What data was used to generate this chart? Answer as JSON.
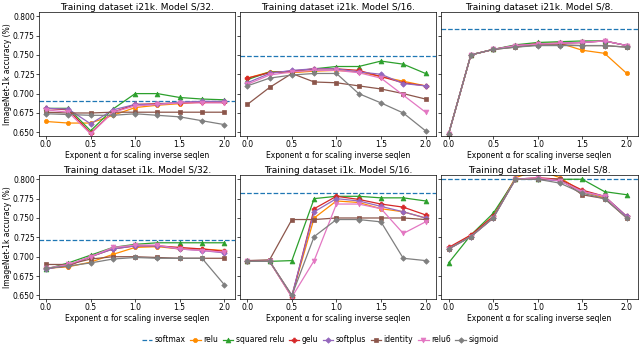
{
  "alpha_values": [
    0.0,
    0.25,
    0.5,
    0.75,
    1.0,
    1.25,
    1.5,
    1.75,
    2.0
  ],
  "titles": [
    "Training dataset i21k. Model S/32.",
    "Training dataset i21k. Model S/16.",
    "Training dataset i21k. Model S/8.",
    "Training dataset i1k. Model S/32.",
    "Training dataset i1k. Model S/16.",
    "Training dataset i1k. Model S/8."
  ],
  "softmax_lines": [
    0.6905,
    0.748,
    0.783,
    0.722,
    0.782,
    0.8
  ],
  "series": {
    "relu": {
      "color": "#ff8c00",
      "marker": "o",
      "markersize": 3.0,
      "data": [
        [
          0.664,
          0.662,
          0.662,
          0.672,
          0.682,
          0.685,
          0.687,
          0.689,
          0.69
        ],
        [
          0.72,
          0.728,
          0.727,
          0.729,
          0.73,
          0.728,
          0.722,
          0.716,
          0.71
        ],
        [
          0.648,
          0.75,
          0.757,
          0.762,
          0.765,
          0.765,
          0.756,
          0.752,
          0.726
        ],
        [
          0.685,
          0.687,
          0.693,
          0.703,
          0.712,
          0.713,
          0.71,
          0.71,
          0.708
        ],
        [
          0.694,
          0.694,
          0.65,
          0.75,
          0.772,
          0.77,
          0.762,
          0.758,
          0.75
        ],
        [
          0.71,
          0.728,
          0.752,
          0.802,
          0.812,
          0.802,
          0.784,
          0.776,
          0.75
        ]
      ]
    },
    "squared_relu": {
      "color": "#2ca02c",
      "marker": "^",
      "markersize": 3.5,
      "data": [
        [
          0.681,
          0.681,
          0.652,
          0.68,
          0.7,
          0.7,
          0.695,
          0.693,
          0.692
        ],
        [
          0.718,
          0.728,
          0.728,
          0.732,
          0.735,
          0.735,
          0.742,
          0.738,
          0.726
        ],
        [
          0.648,
          0.75,
          0.757,
          0.763,
          0.766,
          0.767,
          0.768,
          0.768,
          0.762
        ],
        [
          0.684,
          0.692,
          0.702,
          0.712,
          0.716,
          0.718,
          0.718,
          0.718,
          0.718
        ],
        [
          0.694,
          0.694,
          0.695,
          0.775,
          0.778,
          0.778,
          0.776,
          0.776,
          0.772
        ],
        [
          0.692,
          0.728,
          0.756,
          0.8,
          0.8,
          0.8,
          0.8,
          0.784,
          0.78
        ]
      ]
    },
    "gelu": {
      "color": "#d62728",
      "marker": "P",
      "markersize": 3.5,
      "data": [
        [
          0.681,
          0.679,
          0.649,
          0.676,
          0.686,
          0.687,
          0.688,
          0.689,
          0.689
        ],
        [
          0.72,
          0.727,
          0.729,
          0.732,
          0.732,
          0.73,
          0.722,
          0.714,
          0.71
        ],
        [
          0.648,
          0.75,
          0.757,
          0.762,
          0.764,
          0.765,
          0.766,
          0.768,
          0.762
        ],
        [
          0.685,
          0.688,
          0.7,
          0.71,
          0.714,
          0.714,
          0.712,
          0.71,
          0.707
        ],
        [
          0.694,
          0.694,
          0.648,
          0.762,
          0.778,
          0.774,
          0.768,
          0.764,
          0.754
        ],
        [
          0.712,
          0.728,
          0.752,
          0.8,
          0.802,
          0.8,
          0.786,
          0.778,
          0.752
        ]
      ]
    },
    "softplus": {
      "color": "#9467bd",
      "marker": "D",
      "markersize": 2.8,
      "data": [
        [
          0.681,
          0.68,
          0.661,
          0.679,
          0.686,
          0.686,
          0.689,
          0.69,
          0.69
        ],
        [
          0.714,
          0.726,
          0.73,
          0.732,
          0.732,
          0.728,
          0.725,
          0.713,
          0.71
        ],
        [
          0.648,
          0.75,
          0.757,
          0.762,
          0.764,
          0.765,
          0.766,
          0.768,
          0.762
        ],
        [
          0.684,
          0.689,
          0.7,
          0.71,
          0.714,
          0.714,
          0.71,
          0.708,
          0.705
        ],
        [
          0.694,
          0.694,
          0.65,
          0.758,
          0.775,
          0.772,
          0.765,
          0.758,
          0.75
        ],
        [
          0.71,
          0.726,
          0.75,
          0.8,
          0.8,
          0.798,
          0.784,
          0.778,
          0.752
        ]
      ]
    },
    "identity": {
      "color": "#8c564b",
      "marker": "s",
      "markersize": 3.0,
      "data": [
        [
          0.676,
          0.675,
          0.675,
          0.676,
          0.676,
          0.676,
          0.676,
          0.676,
          0.676
        ],
        [
          0.686,
          0.708,
          0.726,
          0.715,
          0.714,
          0.71,
          0.706,
          0.7,
          0.693
        ],
        [
          0.648,
          0.75,
          0.757,
          0.76,
          0.763,
          0.763,
          0.762,
          0.762,
          0.76
        ],
        [
          0.69,
          0.69,
          0.697,
          0.7,
          0.7,
          0.699,
          0.698,
          0.698,
          0.698
        ],
        [
          0.695,
          0.696,
          0.748,
          0.748,
          0.75,
          0.75,
          0.75,
          0.75,
          0.748
        ],
        [
          0.71,
          0.726,
          0.75,
          0.8,
          0.8,
          0.8,
          0.78,
          0.775,
          0.75
        ]
      ]
    },
    "relu6": {
      "color": "#e377c2",
      "marker": "v",
      "markersize": 3.5,
      "data": [
        [
          0.679,
          0.676,
          0.648,
          0.676,
          0.684,
          0.686,
          0.688,
          0.688,
          0.688
        ],
        [
          0.712,
          0.724,
          0.728,
          0.73,
          0.73,
          0.727,
          0.72,
          0.698,
          0.676
        ],
        [
          0.648,
          0.75,
          0.757,
          0.762,
          0.764,
          0.765,
          0.766,
          0.768,
          0.762
        ],
        [
          0.685,
          0.69,
          0.7,
          0.712,
          0.715,
          0.715,
          0.71,
          0.708,
          0.706
        ],
        [
          0.694,
          0.694,
          0.648,
          0.695,
          0.768,
          0.768,
          0.762,
          0.73,
          0.745
        ],
        [
          0.71,
          0.726,
          0.75,
          0.8,
          0.802,
          0.798,
          0.784,
          0.778,
          0.75
        ]
      ]
    },
    "sigmoid": {
      "color": "#7f7f7f",
      "marker": "D",
      "markersize": 2.8,
      "data": [
        [
          0.674,
          0.673,
          0.672,
          0.672,
          0.674,
          0.672,
          0.67,
          0.665,
          0.66
        ],
        [
          0.71,
          0.72,
          0.724,
          0.726,
          0.726,
          0.7,
          0.688,
          0.675,
          0.652
        ],
        [
          0.648,
          0.75,
          0.757,
          0.76,
          0.762,
          0.762,
          0.762,
          0.762,
          0.76
        ],
        [
          0.685,
          0.688,
          0.692,
          0.697,
          0.699,
          0.698,
          0.698,
          0.698,
          0.664
        ],
        [
          0.694,
          0.694,
          0.65,
          0.726,
          0.748,
          0.748,
          0.745,
          0.698,
          0.695
        ],
        [
          0.71,
          0.726,
          0.75,
          0.8,
          0.8,
          0.795,
          0.782,
          0.775,
          0.75
        ]
      ]
    }
  },
  "ylim": [
    0.645,
    0.805
  ],
  "yticks": [
    0.65,
    0.675,
    0.7,
    0.725,
    0.75,
    0.775,
    0.8
  ],
  "xticks": [
    0.0,
    0.5,
    1.0,
    1.5,
    2.0
  ],
  "xlabel": "Exponent α for scaling inverse seqlen",
  "ylabel": "ImageNet-1k accuracy (%)",
  "legend_labels": [
    "softmax",
    "relu",
    "squared relu",
    "gelu",
    "softplus",
    "identity",
    "relu6",
    "sigmoid"
  ]
}
